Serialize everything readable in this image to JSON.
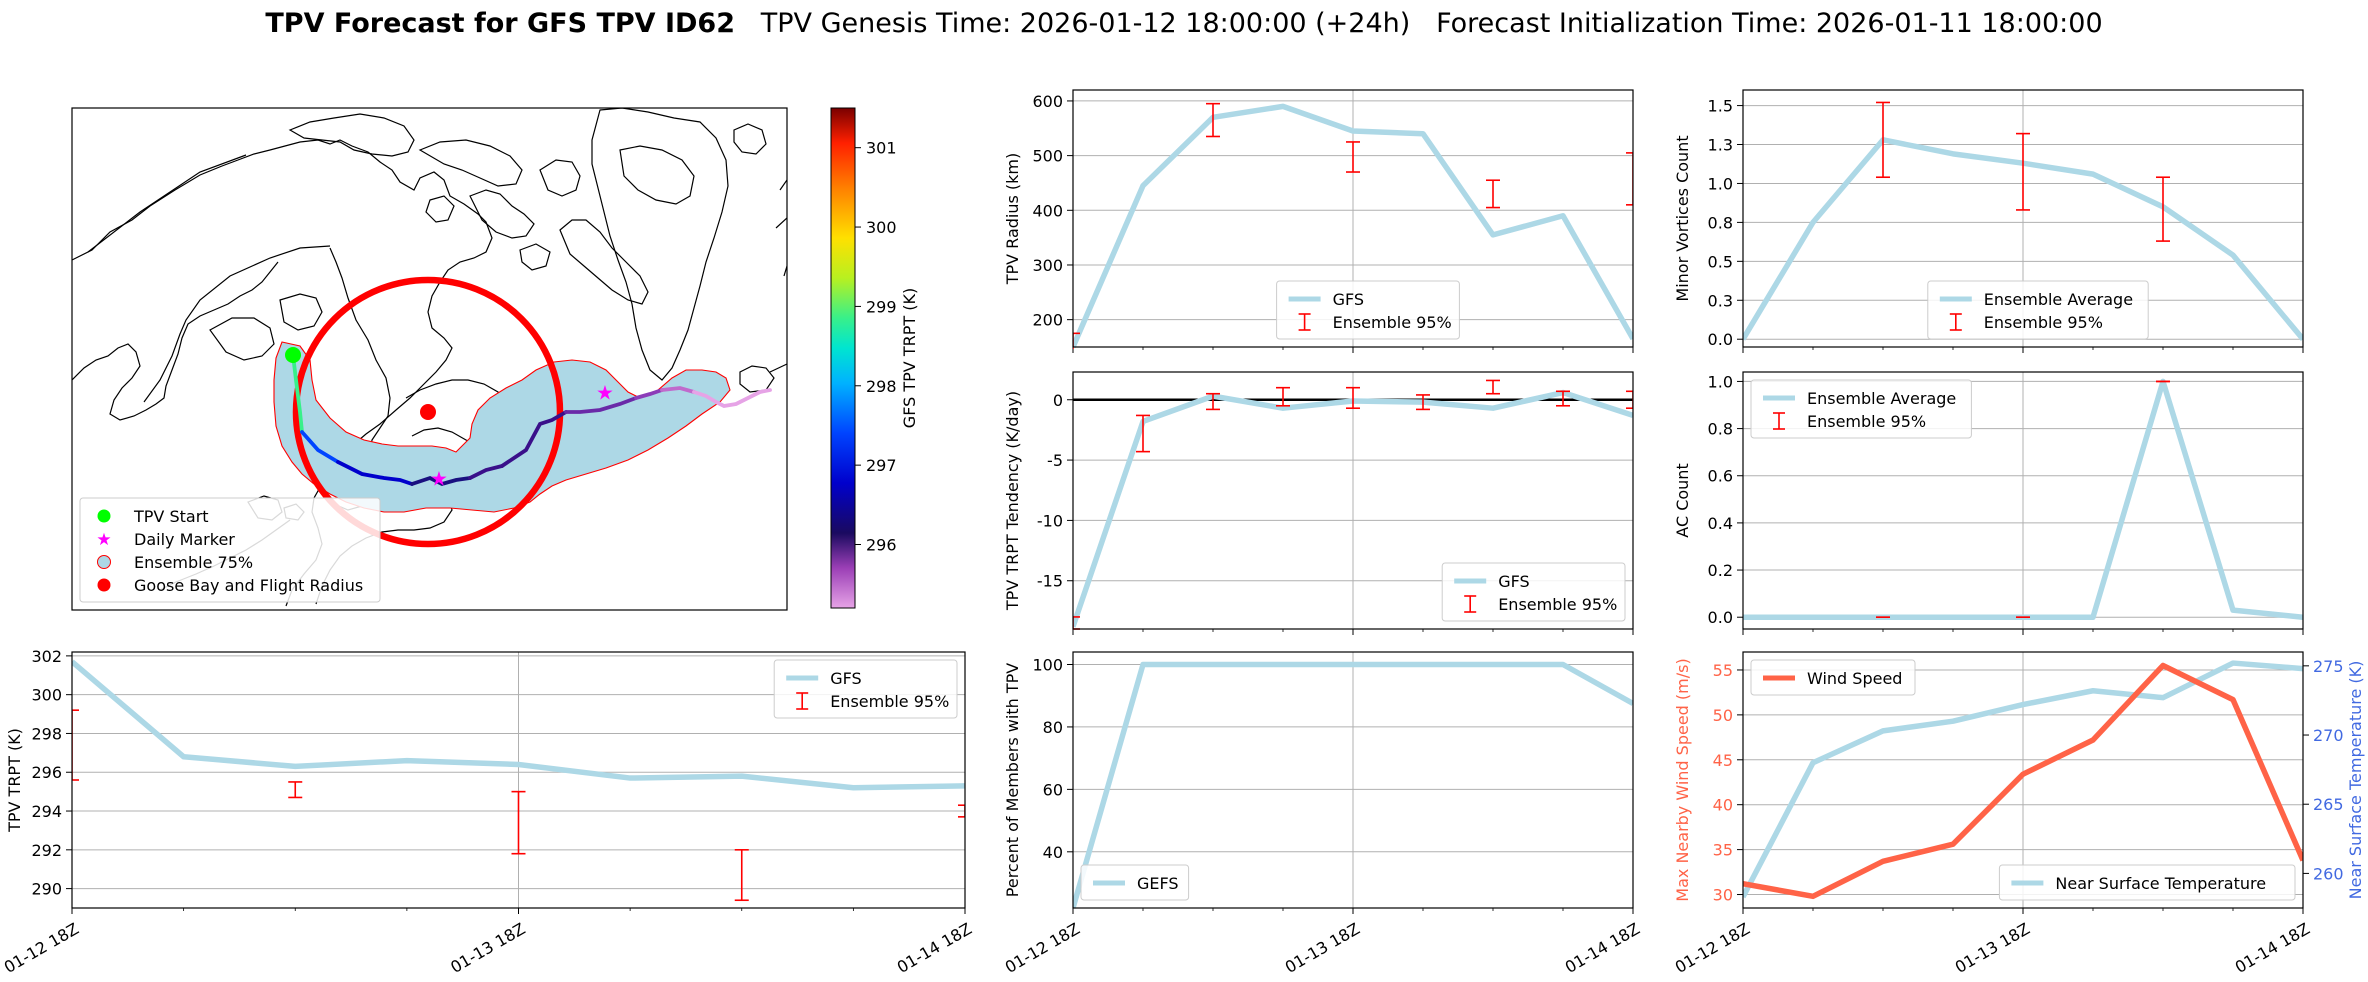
{
  "title": {
    "bold": "TPV Forecast for GFS TPV ID62",
    "genesis": "TPV Genesis Time: 2026-01-12 18:00:00 (+24h)",
    "init": "Forecast Initialization Time: 2026-01-11 18:00:00"
  },
  "colors": {
    "gfs_line": "#add8e6",
    "errorbar": "#ff0000",
    "wind": "#ff6347",
    "temp_axis": "#4169e1",
    "ensemble_fill": "#add8e6",
    "ensemble_edge": "#ff0000",
    "tpv_start": "#00ff00",
    "daily_marker": "#ff00ff",
    "goose_bay": "#ff0000"
  },
  "map": {
    "colorbar": {
      "label": "GFS TPV TRPT (K)",
      "min": 295.2,
      "max": 301.5,
      "ticks": [
        296,
        297,
        298,
        299,
        300,
        301
      ]
    },
    "legend": [
      "TPV Start",
      "Daily Marker",
      "Ensemble 75%",
      "Goose Bay and Flight Radius"
    ]
  },
  "time_axis": {
    "ticks": [
      "01-12 18Z",
      "01-13 18Z",
      "01-14 18Z"
    ]
  },
  "chart_data": [
    {
      "id": "radius",
      "type": "line",
      "ylabel": "TPV Radius (km)",
      "ylim": [
        150,
        620
      ],
      "yticks": [
        200,
        300,
        400,
        500,
        600
      ],
      "x": [
        0,
        6,
        12,
        18,
        24,
        30,
        36,
        42,
        48
      ],
      "series": [
        {
          "name": "GFS",
          "values": [
            150,
            445,
            570,
            590,
            545,
            540,
            355,
            390,
            165
          ]
        }
      ],
      "errorbars": {
        "name": "Ensemble 95%",
        "x": [
          0,
          12,
          24,
          36,
          48
        ],
        "low": [
          140,
          535,
          470,
          405,
          410
        ],
        "high": [
          175,
          595,
          525,
          455,
          505
        ]
      },
      "legend": [
        "GFS",
        "Ensemble 95%"
      ]
    },
    {
      "id": "minor",
      "type": "line",
      "ylabel": "Minor Vortices Count",
      "ylim": [
        -0.05,
        1.6
      ],
      "yticks": [
        0.0,
        0.25,
        0.5,
        0.75,
        1.0,
        1.25,
        1.5
      ],
      "x": [
        0,
        6,
        12,
        18,
        24,
        30,
        36,
        42,
        48
      ],
      "series": [
        {
          "name": "Ensemble Average",
          "values": [
            0,
            0.75,
            1.28,
            1.19,
            1.13,
            1.06,
            0.85,
            0.54,
            0
          ]
        }
      ],
      "errorbars": {
        "name": "Ensemble 95%",
        "x": [
          12,
          24,
          36
        ],
        "low": [
          1.04,
          0.83,
          0.63
        ],
        "high": [
          1.52,
          1.32,
          1.04
        ]
      },
      "legend": [
        "Ensemble Average",
        "Ensemble 95%"
      ]
    },
    {
      "id": "tendency",
      "type": "line",
      "ylabel": "TPV TRPT Tendency (K/day)",
      "ylim": [
        -19,
        2.3
      ],
      "yticks": [
        0,
        -5,
        -10,
        -15
      ],
      "hline": 0,
      "x": [
        0,
        6,
        12,
        18,
        24,
        30,
        36,
        42,
        48
      ],
      "series": [
        {
          "name": "GFS",
          "values": [
            -18.8,
            -1.8,
            0.3,
            -0.7,
            -0.1,
            -0.2,
            -0.7,
            0.6,
            -1.3
          ]
        }
      ],
      "errorbars": {
        "name": "Ensemble 95%",
        "x": [
          0,
          6,
          12,
          18,
          24,
          30,
          36,
          42,
          48
        ],
        "low": [
          -19,
          -4.3,
          -0.8,
          -0.5,
          -0.7,
          -0.8,
          0.5,
          -0.5,
          -0.7
        ],
        "high": [
          -18,
          -1.3,
          0.5,
          1.0,
          1.0,
          0.4,
          1.6,
          0.7,
          0.7
        ]
      },
      "legend": [
        "GFS",
        "Ensemble 95%"
      ]
    },
    {
      "id": "ac",
      "type": "line",
      "ylabel": "AC Count",
      "ylim": [
        -0.05,
        1.04
      ],
      "yticks": [
        0.0,
        0.2,
        0.4,
        0.6,
        0.8,
        1.0
      ],
      "x": [
        0,
        6,
        12,
        18,
        24,
        30,
        36,
        42,
        48
      ],
      "series": [
        {
          "name": "Ensemble Average",
          "values": [
            0,
            0,
            0,
            0,
            0,
            0,
            1.0,
            0.03,
            0
          ]
        }
      ],
      "errorbars": {
        "name": "Ensemble 95%",
        "x": [
          12,
          24,
          36
        ],
        "low": [
          0,
          0,
          1.0
        ],
        "high": [
          0,
          0,
          1.0
        ]
      },
      "legend": [
        "Ensemble Average",
        "Ensemble 95%"
      ]
    },
    {
      "id": "trpt",
      "type": "line",
      "ylabel": "TPV TRPT (K)",
      "ylim": [
        289,
        302.2
      ],
      "yticks": [
        290,
        292,
        294,
        296,
        298,
        300,
        302
      ],
      "x": [
        0,
        6,
        12,
        18,
        24,
        30,
        36,
        42,
        48
      ],
      "series": [
        {
          "name": "GFS",
          "values": [
            301.7,
            296.8,
            296.3,
            296.6,
            296.4,
            295.7,
            295.8,
            295.2,
            295.3
          ]
        }
      ],
      "errorbars": {
        "name": "Ensemble 95%",
        "x": [
          0,
          12,
          24,
          36,
          48
        ],
        "low": [
          295.6,
          294.7,
          291.8,
          289.4,
          293.7
        ],
        "high": [
          299.2,
          295.5,
          295.0,
          292.0,
          294.3
        ]
      },
      "legend": [
        "GFS",
        "Ensemble 95%"
      ]
    },
    {
      "id": "percent",
      "type": "line",
      "ylabel": "Percent of Members with TPV",
      "ylim": [
        22,
        104
      ],
      "yticks": [
        40,
        60,
        80,
        100
      ],
      "x": [
        0,
        6,
        12,
        18,
        24,
        30,
        36,
        42,
        48
      ],
      "series": [
        {
          "name": "GEFS",
          "values": [
            22,
            100,
            100,
            100,
            100,
            100,
            100,
            100,
            87.5
          ]
        }
      ],
      "legend": [
        "GEFS"
      ]
    },
    {
      "id": "wind",
      "type": "line",
      "ylabel": "Max Nearby Wind Speed (m/s)",
      "y2label": "Near Surface Temperature (K)",
      "ylim": [
        28.5,
        57
      ],
      "yticks": [
        30,
        35,
        40,
        45,
        50,
        55
      ],
      "y2lim": [
        257.5,
        276
      ],
      "y2ticks": [
        260,
        265,
        270,
        275
      ],
      "x": [
        0,
        6,
        12,
        18,
        24,
        30,
        36,
        42,
        48
      ],
      "series": [
        {
          "name": "Wind Speed",
          "values": [
            31.2,
            29.8,
            33.7,
            35.6,
            43.4,
            47.2,
            55.5,
            51.7,
            33.8
          ]
        }
      ],
      "series2": [
        {
          "name": "Near Surface Temperature",
          "values": [
            258.3,
            268.0,
            270.3,
            271.0,
            272.2,
            273.2,
            272.7,
            275.2,
            274.8
          ]
        }
      ],
      "legend": [
        "Wind Speed"
      ],
      "legend2": [
        "Near Surface Temperature"
      ]
    }
  ]
}
